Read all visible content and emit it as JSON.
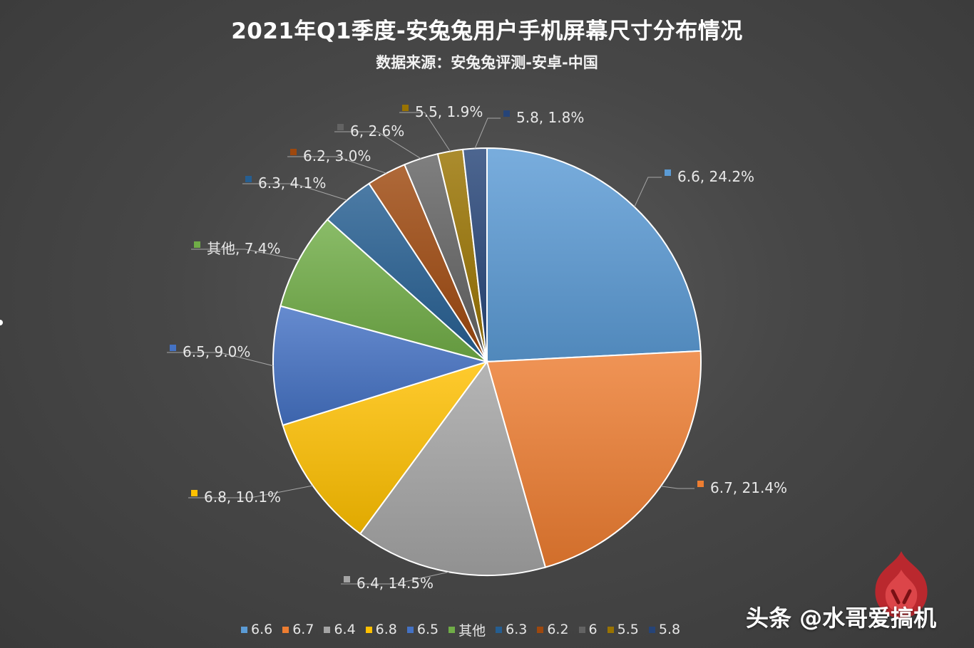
{
  "title": "2021年Q1季度-安兔兔用户手机屏幕尺寸分布情况",
  "subtitle": "数据来源：安兔兔评测-安卓-中国",
  "watermark": "头条 @水哥爱搞机",
  "chart_data": {
    "type": "pie",
    "title": "2021年Q1季度-安兔兔用户手机屏幕尺寸分布情况",
    "subtitle": "数据来源：安兔兔评测-安卓-中国",
    "legend_position": "bottom",
    "slices": [
      {
        "label": "6.6",
        "value": 24.2,
        "display": "6.6, 24.2%",
        "color": "#5b9bd5"
      },
      {
        "label": "6.7",
        "value": 21.4,
        "display": "6.7, 21.4%",
        "color": "#ed7d31"
      },
      {
        "label": "6.4",
        "value": 14.5,
        "display": "6.4, 14.5%",
        "color": "#a5a5a5"
      },
      {
        "label": "6.8",
        "value": 10.1,
        "display": "6.8, 10.1%",
        "color": "#ffc000"
      },
      {
        "label": "6.5",
        "value": 9.0,
        "display": "6.5, 9.0%",
        "color": "#4472c4"
      },
      {
        "label": "其他",
        "value": 7.4,
        "display": "其他, 7.4%",
        "color": "#70ad47"
      },
      {
        "label": "6.3",
        "value": 4.1,
        "display": "6.3, 4.1%",
        "color": "#255e91"
      },
      {
        "label": "6.2",
        "value": 3.0,
        "display": "6.2, 3.0%",
        "color": "#9e480e"
      },
      {
        "label": "6",
        "value": 2.6,
        "display": "6, 2.6%",
        "color": "#636363"
      },
      {
        "label": "5.5",
        "value": 1.9,
        "display": "5.5, 1.9%",
        "color": "#997300"
      },
      {
        "label": "5.8",
        "value": 1.8,
        "display": "5.8, 1.8%",
        "color": "#264478"
      }
    ]
  }
}
